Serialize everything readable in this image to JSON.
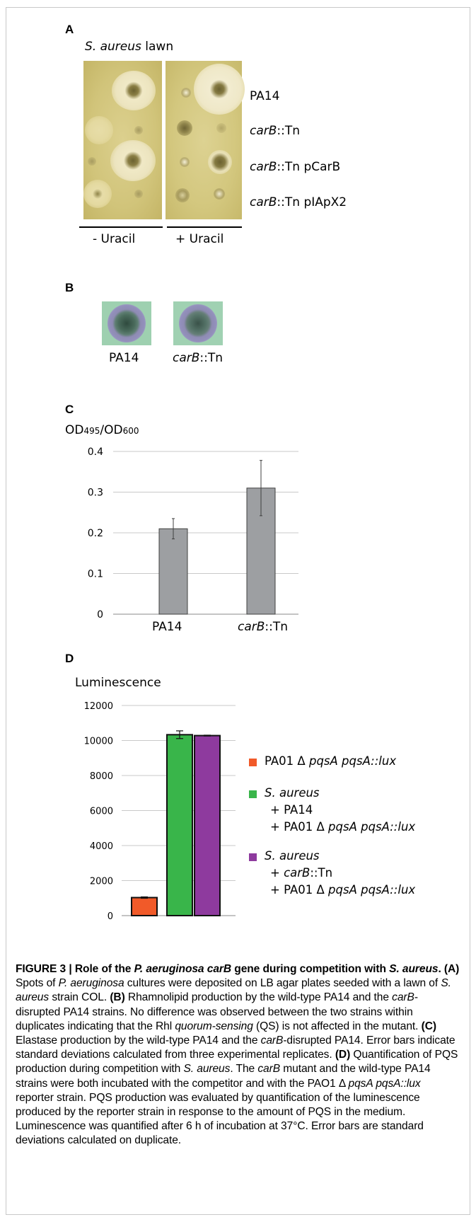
{
  "figure_number": "FIGURE 3",
  "figure_title_a": "Role of the ",
  "figure_title_b": "P. aeruginosa carB",
  "figure_title_c": " gene during competition with ",
  "figure_title_d": "S. aureus",
  "figure_title_e": ".",
  "panel_a": {
    "letter": "A",
    "title_italic": "S. aureus",
    "title_rest": " lawn",
    "rows": [
      {
        "italic": "",
        "rest": "PA14"
      },
      {
        "italic": "carB",
        "rest": "::Tn"
      },
      {
        "italic": "carB",
        "rest": "::Tn pCarB"
      },
      {
        "italic": "carB",
        "rest": "::Tn pIApX2"
      }
    ],
    "plate_labels": [
      "- Uracil",
      "+ Uracil"
    ]
  },
  "panel_b": {
    "letter": "B",
    "labels": [
      {
        "italic": "",
        "rest": "PA14"
      },
      {
        "italic": "carB",
        "rest": "::Tn"
      }
    ]
  },
  "panel_c": {
    "letter": "C",
    "ylabel_parts": [
      "OD",
      "495",
      "/OD",
      "600"
    ],
    "tick_labels": [
      "0",
      "0.1",
      "0.2",
      "0.3",
      "0.4"
    ],
    "category_labels": [
      {
        "italic": "",
        "rest": "PA14"
      },
      {
        "italic": "carB",
        "rest": "::Tn"
      }
    ]
  },
  "panel_d": {
    "letter": "D",
    "ylabel": "Luminescence",
    "tick_labels": [
      "0",
      "2000",
      "4000",
      "6000",
      "8000",
      "10000",
      "12000"
    ],
    "legend": [
      {
        "lines": [
          [
            {
              "t": "PA01 Δ ",
              "i": false
            },
            {
              "t": "pqsA pqsA::lux",
              "i": true
            }
          ]
        ]
      },
      {
        "lines": [
          [
            {
              "t": "S. aureus",
              "i": true
            }
          ],
          [
            {
              "t": "+ PA14",
              "i": false
            }
          ],
          [
            {
              "t": "+ PA01 Δ ",
              "i": false
            },
            {
              "t": "pqsA pqsA::lux",
              "i": true
            }
          ]
        ]
      },
      {
        "lines": [
          [
            {
              "t": "S. aureus",
              "i": true
            }
          ],
          [
            {
              "t": "+ ",
              "i": false
            },
            {
              "t": "carB",
              "i": true
            },
            {
              "t": "::Tn",
              "i": false
            }
          ],
          [
            {
              "t": "+ PA01 Δ ",
              "i": false
            },
            {
              "t": "pqsA pqsA::lux",
              "i": true
            }
          ]
        ]
      }
    ]
  },
  "chart_data": [
    {
      "type": "bar",
      "panel": "C",
      "title": "",
      "ylabel": "OD495/OD600",
      "xlabel": "",
      "categories": [
        "PA14",
        "carB::Tn"
      ],
      "values": [
        0.21,
        0.31
      ],
      "errors": [
        0.025,
        0.068
      ],
      "ylim": [
        0,
        0.4
      ],
      "yticks": [
        0,
        0.1,
        0.2,
        0.3,
        0.4
      ],
      "grid": true,
      "color": "#9d9fa2"
    },
    {
      "type": "bar",
      "panel": "D",
      "title": "",
      "ylabel": "Luminescence",
      "xlabel": "",
      "categories": [
        "PA01 Δ pqsA pqsA::lux",
        "S. aureus + PA14 + PA01 Δ pqsA pqsA::lux",
        "S. aureus + carB::Tn + PA01 Δ pqsA pqsA::lux"
      ],
      "values": [
        1030,
        10330,
        10280
      ],
      "errors": [
        40,
        220,
        25
      ],
      "colors": [
        "#f15a29",
        "#39b54a",
        "#8e3a9e"
      ],
      "ylim": [
        0,
        12000
      ],
      "yticks": [
        0,
        2000,
        4000,
        6000,
        8000,
        10000,
        12000
      ],
      "grid": true,
      "legend_position": "right"
    }
  ],
  "caption": {
    "segments": [
      {
        "t": "(A)",
        "b": true
      },
      {
        "t": " Spots of "
      },
      {
        "t": "P. aeruginosa",
        "i": true
      },
      {
        "t": " cultures were deposited on LB agar plates seeded with a lawn of "
      },
      {
        "t": "S. aureus",
        "i": true
      },
      {
        "t": " strain COL. "
      },
      {
        "t": "(B)",
        "b": true
      },
      {
        "t": " Rhamnolipid production by the wild-type PA14 and the "
      },
      {
        "t": "carB",
        "i": true
      },
      {
        "t": "-disrupted PA14 strains. No difference was observed between the two strains within duplicates indicating that the Rhl "
      },
      {
        "t": "quorum-sensing",
        "i": true
      },
      {
        "t": " (QS) is not affected in the mutant. "
      },
      {
        "t": "(C)",
        "b": true
      },
      {
        "t": " Elastase production by the wild-type PA14 and the "
      },
      {
        "t": "carB",
        "i": true
      },
      {
        "t": "-disrupted PA14. Error bars indicate standard deviations calculated from three experimental replicates. "
      },
      {
        "t": "(D)",
        "b": true
      },
      {
        "t": " Quantification of PQS production during competition with "
      },
      {
        "t": "S. aureus",
        "i": true
      },
      {
        "t": ". The "
      },
      {
        "t": "carB",
        "i": true
      },
      {
        "t": " mutant and the wild-type PA14 strains were both incubated with the competitor and with the PAO1 Δ "
      },
      {
        "t": "pqsA pqsA::lux",
        "i": true
      },
      {
        "t": " reporter strain. PQS production was evaluated by quantification of the luminescence produced by the reporter strain in response to the amount of PQS in the medium. Luminescence was quantified after 6 h of incubation at 37°C. Error bars are standard deviations calculated on duplicate."
      }
    ]
  }
}
